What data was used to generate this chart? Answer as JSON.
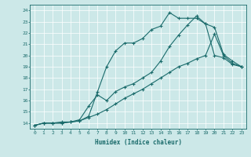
{
  "xlabel": "Humidex (Indice chaleur)",
  "bg_color": "#cce8e8",
  "line_color": "#1a6b6b",
  "xlim": [
    -0.5,
    23.5
  ],
  "ylim": [
    13.5,
    24.5
  ],
  "xticks": [
    0,
    1,
    2,
    3,
    4,
    5,
    6,
    7,
    8,
    9,
    10,
    11,
    12,
    13,
    14,
    15,
    16,
    17,
    18,
    19,
    20,
    21,
    22,
    23
  ],
  "yticks": [
    14,
    15,
    16,
    17,
    18,
    19,
    20,
    21,
    22,
    23,
    24
  ],
  "line1_x": [
    0,
    1,
    2,
    3,
    4,
    5,
    6,
    7,
    8,
    9,
    10,
    11,
    12,
    13,
    14,
    15,
    16,
    17,
    18,
    19,
    20,
    21,
    22,
    23
  ],
  "line1_y": [
    13.8,
    14.0,
    14.0,
    14.0,
    14.1,
    14.2,
    14.5,
    14.8,
    15.2,
    15.7,
    16.2,
    16.6,
    17.0,
    17.5,
    18.0,
    18.5,
    19.0,
    19.3,
    19.7,
    20.0,
    21.9,
    20.0,
    19.3,
    19.0
  ],
  "line2_x": [
    0,
    1,
    2,
    3,
    4,
    5,
    6,
    7,
    8,
    9,
    10,
    11,
    12,
    13,
    14,
    15,
    16,
    17,
    18,
    19,
    20,
    21,
    22,
    23
  ],
  "line2_y": [
    13.8,
    14.0,
    14.0,
    14.0,
    14.1,
    14.2,
    14.6,
    16.8,
    19.0,
    20.4,
    21.1,
    21.1,
    21.5,
    22.3,
    22.6,
    23.8,
    23.3,
    23.3,
    23.3,
    22.8,
    20.0,
    19.8,
    19.2,
    19.0
  ],
  "line3_x": [
    0,
    1,
    2,
    3,
    4,
    5,
    6,
    7,
    8,
    9,
    10,
    11,
    12,
    13,
    14,
    15,
    16,
    17,
    18,
    19,
    20,
    21,
    22,
    23
  ],
  "line3_y": [
    13.8,
    14.0,
    14.0,
    14.1,
    14.1,
    14.3,
    15.5,
    16.5,
    16.0,
    16.8,
    17.2,
    17.5,
    18.0,
    18.5,
    19.5,
    20.8,
    21.8,
    22.7,
    23.5,
    22.8,
    22.5,
    20.1,
    19.5,
    19.0
  ]
}
